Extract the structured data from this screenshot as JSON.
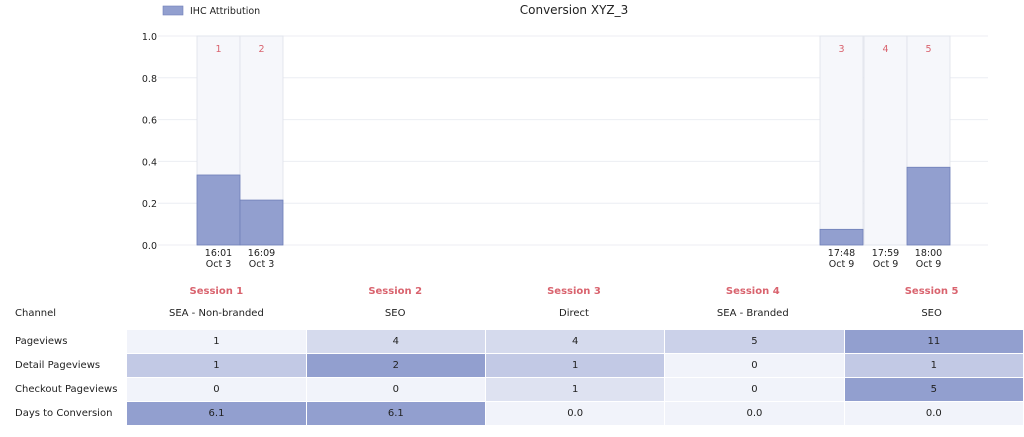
{
  "chart_data": {
    "type": "bar",
    "title": "Conversion XYZ_3",
    "legend": {
      "label": "IHC Attribution",
      "position": "top-left"
    },
    "ylim": [
      0,
      1.0
    ],
    "yticks": [
      "0.0",
      "0.2",
      "0.4",
      "0.6",
      "0.8",
      "1.0"
    ],
    "grid": true,
    "bar_color": "#929fcf",
    "touchpoints": [
      {
        "number": "1",
        "time": "16:01",
        "date": "Oct 3",
        "value": 0.335
      },
      {
        "number": "2",
        "time": "16:09",
        "date": "Oct 3",
        "value": 0.215
      },
      {
        "number": "3",
        "time": "17:48",
        "date": "Oct 9",
        "value": 0.075
      },
      {
        "number": "4",
        "time": "17:59",
        "date": "Oct 9",
        "value": 0.0
      },
      {
        "number": "5",
        "time": "18:00",
        "date": "Oct 9",
        "value": 0.372
      }
    ]
  },
  "sessions": [
    "Session 1",
    "Session 2",
    "Session 3",
    "Session 4",
    "Session 5"
  ],
  "channel": {
    "label": "Channel",
    "values": [
      "SEA - Non-branded",
      "SEO",
      "Direct",
      "SEA - Branded",
      "SEO"
    ]
  },
  "metrics": [
    {
      "label": "Pageviews",
      "values": [
        "1",
        "4",
        "4",
        "5",
        "11"
      ]
    },
    {
      "label": "Detail Pageviews",
      "values": [
        "1",
        "2",
        "1",
        "0",
        "1"
      ]
    },
    {
      "label": "Checkout Pageviews",
      "values": [
        "0",
        "0",
        "1",
        "0",
        "5"
      ]
    },
    {
      "label": "Days to Conversion",
      "values": [
        "6.1",
        "6.1",
        "0.0",
        "0.0",
        "0.0"
      ]
    }
  ]
}
